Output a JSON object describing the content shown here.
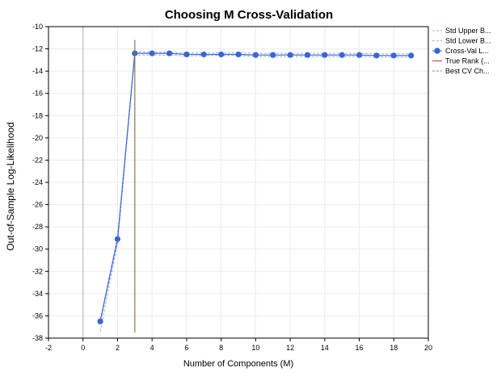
{
  "chart_data": {
    "type": "line",
    "title": "Choosing M Cross-Validation",
    "xlabel": "Number of Components (M)",
    "ylabel": "Out-of-Sample Log-Likelihood",
    "xlim": [
      -2,
      20
    ],
    "ylim": [
      -38,
      -10
    ],
    "xticks": [
      -2,
      0,
      2,
      4,
      6,
      8,
      10,
      12,
      14,
      16,
      18,
      20
    ],
    "yticks": [
      -10,
      -12,
      -14,
      -16,
      -18,
      -20,
      -22,
      -24,
      -26,
      -28,
      -30,
      -32,
      -34,
      -36,
      -38
    ],
    "grid": true,
    "legend_position": "right",
    "x": [
      1,
      2,
      3,
      4,
      5,
      6,
      7,
      8,
      9,
      10,
      11,
      12,
      13,
      14,
      15,
      16,
      17,
      18,
      19
    ],
    "series": [
      {
        "name": "Std Upper B...",
        "color": "#9ab0e0",
        "style": "dashed",
        "values": [
          -36.3,
          -28.9,
          -12.25,
          -12.3,
          -12.3,
          -12.35,
          -12.35,
          -12.35,
          -12.35,
          -12.4,
          -12.4,
          -12.4,
          -12.4,
          -12.4,
          -12.4,
          -12.4,
          -12.45,
          -12.45,
          -12.45
        ]
      },
      {
        "name": "Std Lower B...",
        "color": "#9ab0e0",
        "style": "dashed",
        "values": [
          -37.4,
          -29.5,
          -12.55,
          -12.55,
          -12.55,
          -12.65,
          -12.6,
          -12.6,
          -12.6,
          -12.7,
          -12.7,
          -12.7,
          -12.7,
          -12.7,
          -12.7,
          -12.7,
          -12.75,
          -12.75,
          -12.75
        ]
      },
      {
        "name": "Cross-Val L...",
        "color": "#3a66d4",
        "style": "solid-markers",
        "values": [
          -36.5,
          -29.1,
          -12.4,
          -12.4,
          -12.4,
          -12.5,
          -12.5,
          -12.5,
          -12.5,
          -12.55,
          -12.55,
          -12.55,
          -12.55,
          -12.55,
          -12.55,
          -12.55,
          -12.6,
          -12.6,
          -12.6
        ]
      }
    ],
    "vlines": [
      {
        "name": "True Rank (...",
        "color": "#cc3333",
        "style": "solid",
        "x": 3
      },
      {
        "name": "Best CV Ch...",
        "color": "#5aa05a",
        "style": "dashed",
        "x": 3
      }
    ],
    "legend": [
      "Std Upper B...",
      "Std Lower B...",
      "Cross-Val L...",
      "True Rank (...",
      "Best CV Ch..."
    ]
  }
}
